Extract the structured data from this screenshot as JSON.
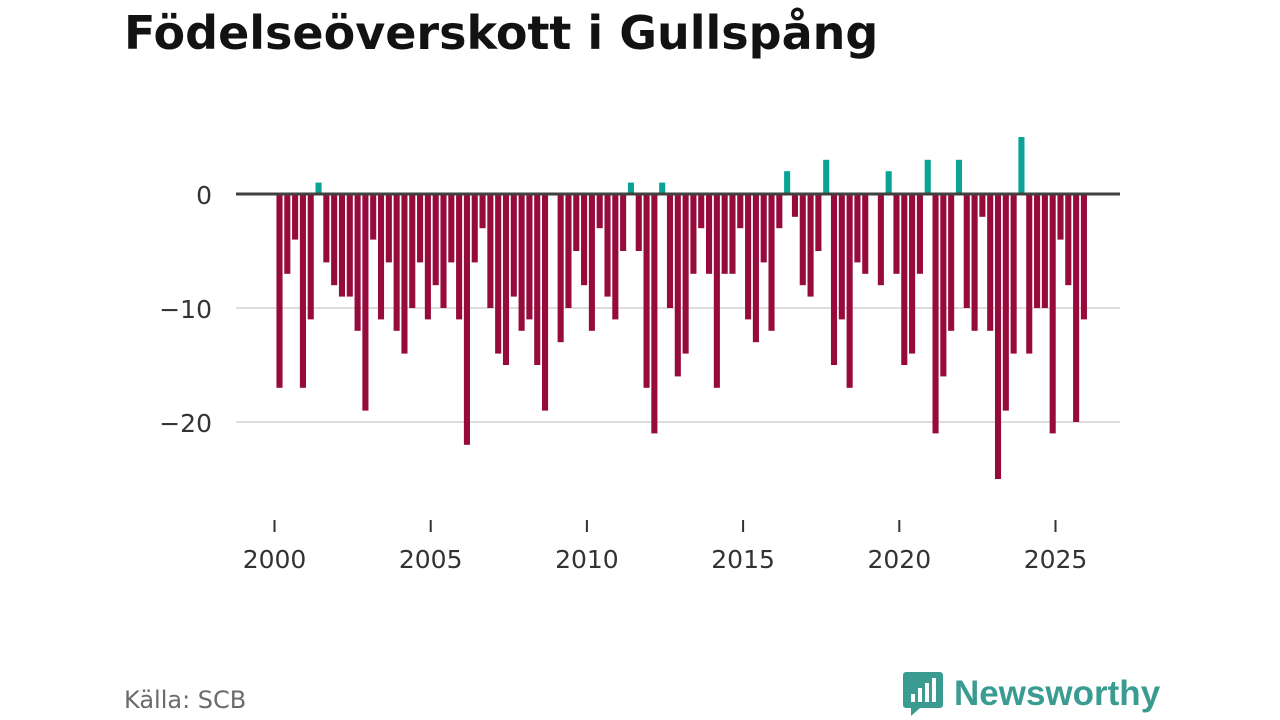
{
  "page": {
    "title": "Födelseöverskott i Gullspång",
    "source": "Källa: SCB",
    "brand": "Newsworthy"
  },
  "colors": {
    "negative": "#960a3c",
    "positive": "#0aa395",
    "zero_line": "#404040",
    "grid": "#dddddd",
    "brand": "#3a9c91"
  },
  "icons": {
    "brand_logo": "bar-chart-speech-bubble-icon"
  },
  "chart_data": {
    "type": "bar",
    "title": "Födelseöverskott i Gullspång",
    "xlabel": "",
    "ylabel": "",
    "x_axis": {
      "unit": "year",
      "range": [
        1999.4,
        2026.4
      ],
      "ticks": [
        2000,
        2005,
        2010,
        2015,
        2020,
        2025
      ]
    },
    "y_axis": {
      "range": [
        -27,
        7.5
      ],
      "ticks": [
        0,
        -10,
        -20
      ],
      "tick_labels": [
        "0",
        "−10",
        "−20"
      ]
    },
    "grid": true,
    "bar_period": "quarter",
    "x_start": 2000.0,
    "values": [
      -17,
      -7,
      -4,
      -17,
      -11,
      1,
      -6,
      -8,
      -9,
      -9,
      -12,
      -19,
      -4,
      -11,
      -6,
      -12,
      -14,
      -10,
      -6,
      -11,
      -8,
      -10,
      -6,
      -11,
      -22,
      -6,
      -3,
      -10,
      -14,
      -15,
      -9,
      -12,
      -11,
      -15,
      -19,
      0,
      -13,
      -10,
      -5,
      -8,
      -12,
      -3,
      -9,
      -11,
      -5,
      1,
      -5,
      -17,
      -21,
      1,
      -10,
      -16,
      -14,
      -7,
      -3,
      -7,
      -17,
      -7,
      -7,
      -3,
      -11,
      -13,
      -6,
      -12,
      -3,
      2,
      -2,
      -8,
      -9,
      -5,
      3,
      -15,
      -11,
      -17,
      -6,
      -7,
      0,
      -8,
      2,
      -7,
      -15,
      -14,
      -7,
      3,
      -21,
      -16,
      -12,
      3,
      -10,
      -12,
      -2,
      -12,
      -25,
      -19,
      -14,
      5,
      -14,
      -10,
      -10,
      -21,
      -4,
      -8,
      -20,
      -11
    ]
  }
}
